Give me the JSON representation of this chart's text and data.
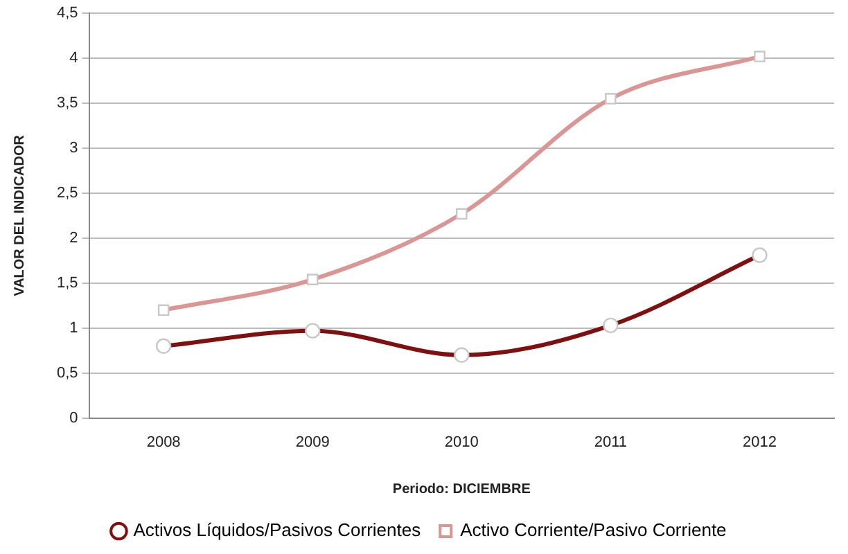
{
  "chart_data": {
    "type": "line",
    "xlabel": "Periodo: DICIEMBRE",
    "ylabel": "VALOR DEL INDICADOR",
    "categories": [
      "2008",
      "2009",
      "2010",
      "2011",
      "2012"
    ],
    "series": [
      {
        "name": "Activos Líquidos/Pasivos Corrientes",
        "color": "#7f1010",
        "marker": "circle",
        "values": [
          0.8,
          0.97,
          0.7,
          1.03,
          1.81
        ]
      },
      {
        "name": "Activo Corriente/Pasivo Corriente",
        "color": "#d99694",
        "marker": "square",
        "values": [
          1.2,
          1.54,
          2.27,
          3.55,
          4.02
        ]
      }
    ],
    "ylim": [
      0,
      4.5
    ],
    "yticks": [
      0,
      {
        "value": 0.5,
        "label": "0,5"
      },
      1,
      {
        "value": 1.5,
        "label": "1,5"
      },
      2,
      {
        "value": 2.5,
        "label": "2,5"
      },
      3,
      {
        "value": 3.5,
        "label": "3,5"
      },
      4,
      {
        "value": 4.5,
        "label": "4,5"
      }
    ],
    "grid": "y",
    "legend": "bottom",
    "line_style": "solid"
  }
}
